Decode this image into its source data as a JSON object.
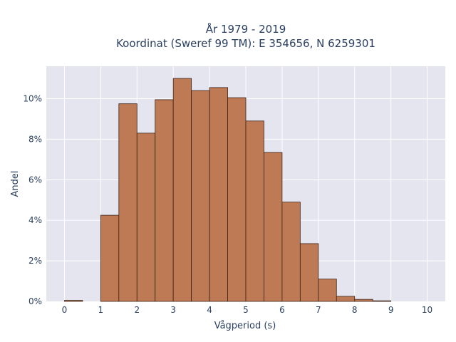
{
  "chart_data": {
    "type": "bar",
    "title": "År 1979 - 2019",
    "subtitle": "Koordinat (Sweref 99 TM): E 354656, N 6259301",
    "xlabel": "Vågperiod (s)",
    "ylabel": "Andel",
    "bin_width": 0.5,
    "bins": [
      {
        "x0": 0.0,
        "value": 0.0005
      },
      {
        "x0": 0.5,
        "value": 0.0
      },
      {
        "x0": 1.0,
        "value": 0.0425
      },
      {
        "x0": 1.5,
        "value": 0.0975
      },
      {
        "x0": 2.0,
        "value": 0.083
      },
      {
        "x0": 2.5,
        "value": 0.0995
      },
      {
        "x0": 3.0,
        "value": 0.11
      },
      {
        "x0": 3.5,
        "value": 0.104
      },
      {
        "x0": 4.0,
        "value": 0.1055
      },
      {
        "x0": 4.5,
        "value": 0.1005
      },
      {
        "x0": 5.0,
        "value": 0.089
      },
      {
        "x0": 5.5,
        "value": 0.0735
      },
      {
        "x0": 6.0,
        "value": 0.049
      },
      {
        "x0": 6.5,
        "value": 0.0285
      },
      {
        "x0": 7.0,
        "value": 0.011
      },
      {
        "x0": 7.5,
        "value": 0.0025
      },
      {
        "x0": 8.0,
        "value": 0.001
      },
      {
        "x0": 8.5,
        "value": 0.0003
      }
    ],
    "xlim": [
      -0.5,
      10.5
    ],
    "ylim": [
      0,
      0.116
    ],
    "xticks": [
      0,
      1,
      2,
      3,
      4,
      5,
      6,
      7,
      8,
      9,
      10
    ],
    "xtick_labels": [
      "0",
      "1",
      "2",
      "3",
      "4",
      "5",
      "6",
      "7",
      "8",
      "9",
      "10"
    ],
    "yticks": [
      0,
      0.02,
      0.04,
      0.06,
      0.08,
      0.1
    ],
    "ytick_labels": [
      "0%",
      "2%",
      "4%",
      "6%",
      "8%",
      "10%"
    ],
    "grid": true,
    "colors": {
      "bar_fill": "#bd7a55",
      "bar_edge": "#3d2417",
      "plot_bg": "#e5e5f0",
      "grid": "#ffffff",
      "text": "#2a3f5f"
    }
  }
}
